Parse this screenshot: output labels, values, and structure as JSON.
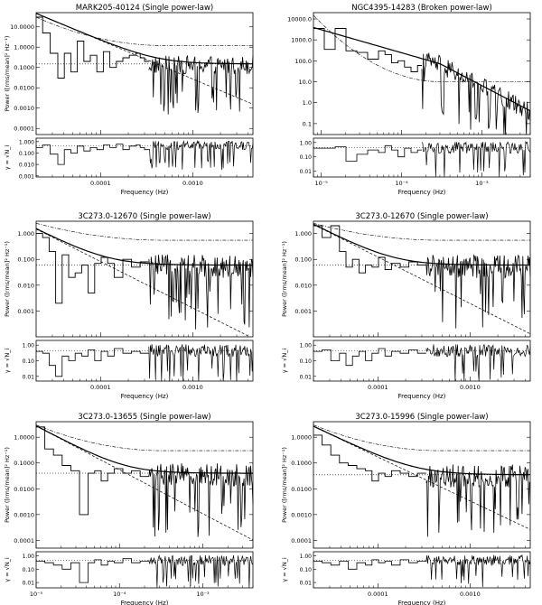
{
  "chart_data": [
    {
      "type": "line",
      "title": "MARK205-40124 (Single power-law)",
      "xlabel": "Frequency (Hz)",
      "ylabel_top": "Power ([rms/mean]² Hz⁻¹)",
      "ylabel_bottom": "γ = √N_i",
      "x_ticks": [
        "0.0001",
        "0.0010"
      ],
      "y_ticks_top": [
        "10.0000",
        "1.0000",
        "0.1000",
        "0.0100",
        "0.0010",
        "0.0001"
      ],
      "y_ticks_bottom": [
        "1.000",
        "0.100",
        "0.010",
        "0.001"
      ],
      "xlim": [
        2e-05,
        0.0045
      ],
      "ylim": [
        5e-05,
        50
      ],
      "ylim_bottom": [
        0.0008,
        2
      ],
      "noise_level": 0.15,
      "model": {
        "shape": "single",
        "amp": 30,
        "f0": 2.5e-05,
        "slope": 1.9
      },
      "upper_curve": {
        "start": 30,
        "end": 1.2
      },
      "coherence_ref": 0.45,
      "bin_edges_frac": [
        0.0,
        0.03,
        0.065,
        0.1,
        0.13,
        0.16,
        0.19,
        0.22,
        0.25,
        0.28,
        0.31,
        0.34,
        0.37,
        0.4,
        0.43,
        0.46,
        0.48,
        0.5,
        0.52
      ],
      "binned_power": [
        30,
        5,
        0.5,
        0.03,
        0.5,
        0.06,
        2,
        0.2,
        0.4,
        0.06,
        0.6,
        0.1,
        0.2,
        0.3,
        0.4,
        0.5,
        0.3,
        0.2
      ],
      "binned_coherence": [
        0.3,
        0.5,
        0.08,
        0.01,
        0.2,
        0.1,
        0.4,
        0.15,
        0.3,
        0.2,
        0.5,
        0.3,
        0.6,
        0.2,
        0.4,
        0.5,
        0.3,
        0.2
      ]
    },
    {
      "type": "line",
      "title": "NGC4395-14283 (Broken power-law)",
      "xlabel": "Frequency (Hz)",
      "ylabel_top": "",
      "ylabel_bottom": "",
      "x_ticks": [
        "10⁻⁵",
        "10⁻⁴",
        "10⁻³"
      ],
      "y_ticks_top": [
        "10000.0",
        "1000.0",
        "100.0",
        "10.0",
        "1.0",
        "0.1"
      ],
      "y_ticks_bottom": [
        "1.00",
        "0.10",
        "0.01"
      ],
      "xlim": [
        8e-06,
        0.004
      ],
      "ylim": [
        0.03,
        20000
      ],
      "ylim_bottom": [
        0.004,
        2
      ],
      "noise_level": null,
      "model": {
        "shape": "broken",
        "amp": 2500,
        "f0": 1.2e-05,
        "fb": 0.0003,
        "slope1": 1.1,
        "slope2": 2.0
      },
      "upper_curve": {
        "start": 15000,
        "end": 10
      },
      "coherence_ref": 0.45,
      "bin_edges_frac": [
        0.0,
        0.05,
        0.1,
        0.15,
        0.2,
        0.25,
        0.3,
        0.33,
        0.36,
        0.39,
        0.42,
        0.45,
        0.48,
        0.5
      ],
      "binned_power": [
        3500,
        350,
        3500,
        300,
        250,
        120,
        300,
        200,
        80,
        100,
        50,
        30,
        60
      ],
      "binned_coherence": [
        0.4,
        0.4,
        0.5,
        0.05,
        0.15,
        0.3,
        0.2,
        0.6,
        0.3,
        0.1,
        0.4,
        0.2,
        0.3
      ]
    },
    {
      "type": "line",
      "title": "3C273.0-12670 (Single power-law)",
      "xlabel": "Frequency (Hz)",
      "ylabel_top": "Power ([rms/mean]² Hz⁻¹)",
      "ylabel_bottom": "γ = √N_i",
      "x_ticks": [
        "0.0001",
        "0.0010"
      ],
      "y_ticks_top": [
        "1.000",
        "0.100",
        "0.010",
        "0.001"
      ],
      "y_ticks_bottom": [
        "1.00",
        "0.10",
        "0.01"
      ],
      "xlim": [
        2e-05,
        0.0045
      ],
      "ylim": [
        0.0001,
        3
      ],
      "ylim_bottom": [
        0.005,
        2
      ],
      "noise_level": 0.06,
      "model": {
        "shape": "single",
        "amp": 1.0,
        "f0": 2.5e-05,
        "slope": 1.8
      },
      "upper_curve": {
        "start": 2.5,
        "end": 0.55
      },
      "coherence_ref": 0.45,
      "bin_edges_frac": [
        0.0,
        0.03,
        0.06,
        0.09,
        0.12,
        0.15,
        0.18,
        0.21,
        0.24,
        0.27,
        0.3,
        0.33,
        0.36,
        0.4,
        0.44,
        0.48,
        0.52
      ],
      "binned_power": [
        1.0,
        0.7,
        0.2,
        0.002,
        0.15,
        0.02,
        0.03,
        0.06,
        0.005,
        0.07,
        0.12,
        0.07,
        0.02,
        0.1,
        0.05,
        0.08
      ],
      "binned_coherence": [
        0.4,
        0.3,
        0.05,
        0.01,
        0.2,
        0.1,
        0.3,
        0.2,
        0.5,
        0.1,
        0.4,
        0.2,
        0.6,
        0.3,
        0.4,
        0.3
      ]
    },
    {
      "type": "line",
      "title": "3C273.0-12670 (Single power-law)",
      "xlabel": "Frequency (Hz)",
      "ylabel_top": "Power ([rms/mean]² Hz⁻¹)",
      "ylabel_bottom": "γ = √N_i",
      "x_ticks": [
        "0.0001",
        "0.0010"
      ],
      "y_ticks_top": [
        "1.000",
        "0.100",
        "0.010",
        "0.001"
      ],
      "y_ticks_bottom": [
        "1.00",
        "0.10",
        "0.01"
      ],
      "xlim": [
        2e-05,
        0.0045
      ],
      "ylim": [
        0.0001,
        3
      ],
      "ylim_bottom": [
        0.005,
        2
      ],
      "noise_level": 0.06,
      "model": {
        "shape": "single",
        "amp": 1.5,
        "f0": 2.5e-05,
        "slope": 1.8
      },
      "upper_curve": {
        "start": 2.5,
        "end": 0.55
      },
      "coherence_ref": 0.45,
      "bin_edges_frac": [
        0.0,
        0.04,
        0.08,
        0.12,
        0.15,
        0.18,
        0.21,
        0.24,
        0.27,
        0.3,
        0.33,
        0.36,
        0.4,
        0.44,
        0.48,
        0.52
      ],
      "binned_power": [
        2.0,
        0.7,
        2.0,
        0.2,
        0.05,
        0.1,
        0.03,
        0.06,
        0.05,
        0.12,
        0.04,
        0.07,
        0.05,
        0.08,
        0.06
      ],
      "binned_coherence": [
        0.4,
        0.5,
        0.1,
        0.3,
        0.05,
        0.2,
        0.4,
        0.1,
        0.3,
        0.6,
        0.2,
        0.4,
        0.3,
        0.5,
        0.3
      ]
    },
    {
      "type": "line",
      "title": "3C273.0-13655 (Single power-law)",
      "xlabel": "Frequency (Hz)",
      "ylabel_top": "Power ([rms/mean]² Hz⁻¹)",
      "ylabel_bottom": "γ = √N_i",
      "x_ticks": [
        "10⁻⁵",
        "10⁻⁴",
        "10⁻³"
      ],
      "y_ticks_top": [
        "1.0000",
        "0.1000",
        "0.0100",
        "0.0010",
        "0.0001"
      ],
      "y_ticks_bottom": [
        "1.00",
        "0.10",
        "0.01"
      ],
      "xlim": [
        1e-05,
        0.004
      ],
      "ylim": [
        5e-05,
        4
      ],
      "ylim_bottom": [
        0.004,
        2
      ],
      "noise_level": 0.04,
      "model": {
        "shape": "single",
        "amp": 2.0,
        "f0": 1.2e-05,
        "slope": 1.7
      },
      "upper_curve": {
        "start": 3,
        "end": 0.3
      },
      "coherence_ref": 0.45,
      "bin_edges_frac": [
        0.0,
        0.04,
        0.08,
        0.12,
        0.16,
        0.2,
        0.24,
        0.27,
        0.3,
        0.33,
        0.36,
        0.4,
        0.44,
        0.48,
        0.52
      ],
      "binned_power": [
        2.5,
        0.35,
        0.2,
        0.08,
        0.05,
        0.001,
        0.04,
        0.05,
        0.02,
        0.04,
        0.06,
        0.04,
        0.05,
        0.03
      ],
      "binned_coherence": [
        0.4,
        0.3,
        0.2,
        0.1,
        0.3,
        0.01,
        0.3,
        0.5,
        0.2,
        0.4,
        0.3,
        0.6,
        0.3,
        0.4
      ]
    },
    {
      "type": "line",
      "title": "3C273.0-15996 (Single power-law)",
      "xlabel": "Frequency (Hz)",
      "ylabel_top": "Power ([rms/mean]² Hz⁻¹)",
      "ylabel_bottom": "γ = √N_i",
      "x_ticks": [
        "0.0001",
        "0.0010"
      ],
      "y_ticks_top": [
        "1.0000",
        "0.1000",
        "0.0100",
        "0.0010",
        "0.0001"
      ],
      "y_ticks_bottom": [
        "1.00",
        "0.10",
        "0.01"
      ],
      "xlim": [
        2e-05,
        0.0045
      ],
      "ylim": [
        5e-05,
        4
      ],
      "ylim_bottom": [
        0.004,
        2
      ],
      "noise_level": 0.035,
      "model": {
        "shape": "single",
        "amp": 1.8,
        "f0": 2.5e-05,
        "slope": 1.7
      },
      "upper_curve": {
        "start": 3,
        "end": 0.3
      },
      "coherence_ref": 0.45,
      "bin_edges_frac": [
        0.0,
        0.04,
        0.08,
        0.12,
        0.16,
        0.2,
        0.24,
        0.27,
        0.3,
        0.33,
        0.36,
        0.4,
        0.44,
        0.48,
        0.52
      ],
      "binned_power": [
        1.2,
        0.5,
        0.2,
        0.1,
        0.08,
        0.06,
        0.05,
        0.02,
        0.04,
        0.03,
        0.05,
        0.04,
        0.03,
        0.04
      ],
      "binned_coherence": [
        0.4,
        0.3,
        0.2,
        0.4,
        0.1,
        0.3,
        0.2,
        0.5,
        0.3,
        0.4,
        0.2,
        0.5,
        0.3,
        0.4
      ]
    }
  ]
}
